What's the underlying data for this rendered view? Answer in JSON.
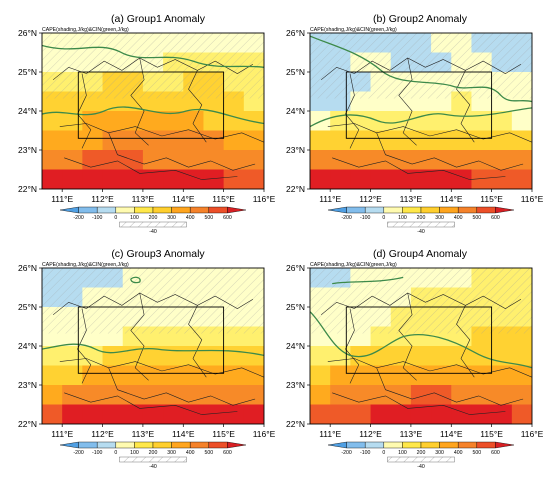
{
  "chart_data": [
    {
      "type": "heatmap",
      "title": "(a) Group1  Anomaly",
      "subtitle": "CAPE(shading,J/kg)&CIN(green,J/kg)",
      "x_ticks": [
        "111°E",
        "112°E",
        "113°E",
        "114°E",
        "115°E",
        "116°E"
      ],
      "y_ticks": [
        "26°N",
        "25°N",
        "24°N",
        "23°N",
        "22°N"
      ],
      "xlim": [
        110.5,
        116
      ],
      "ylim": [
        22,
        26
      ],
      "box": {
        "lon": [
          111.4,
          115
        ],
        "lat": [
          23.3,
          25
        ]
      },
      "colorbar_levels": [
        "-200",
        "-100",
        "0",
        "100",
        "200",
        "300",
        "400",
        "500",
        "600"
      ],
      "cin_legend_label": "-40",
      "cape_field": [
        [
          0,
          0,
          0,
          0,
          0,
          0,
          0,
          0,
          0,
          0,
          0
        ],
        [
          0,
          0,
          0,
          0,
          0,
          0,
          1,
          1,
          1,
          1,
          1
        ],
        [
          1,
          1,
          1,
          2,
          2,
          1,
          1,
          2,
          2,
          1,
          1
        ],
        [
          2,
          2,
          2,
          2,
          2,
          2,
          2,
          2,
          2,
          2,
          1
        ],
        [
          2,
          2,
          3,
          3,
          3,
          3,
          3,
          3,
          2,
          2,
          2
        ],
        [
          3,
          3,
          3,
          4,
          4,
          4,
          4,
          4,
          4,
          3,
          3
        ],
        [
          4,
          4,
          5,
          5,
          5,
          4,
          4,
          4,
          4,
          4,
          4
        ],
        [
          6,
          6,
          6,
          6,
          6,
          6,
          6,
          6,
          6,
          5,
          5
        ]
      ]
    },
    {
      "type": "heatmap",
      "title": "(b) Group2  Anomaly",
      "subtitle": "CAPE(shading,J/kg)&CIN(green,J/kg)",
      "x_ticks": [
        "111°E",
        "112°E",
        "113°E",
        "114°E",
        "115°E",
        "116°E"
      ],
      "y_ticks": [
        "26°N",
        "25°N",
        "24°N",
        "23°N",
        "22°N"
      ],
      "xlim": [
        110.5,
        116
      ],
      "ylim": [
        22,
        26
      ],
      "box": {
        "lon": [
          111.4,
          115
        ],
        "lat": [
          23.3,
          25
        ]
      },
      "colorbar_levels": [
        "-200",
        "-100",
        "0",
        "100",
        "200",
        "300",
        "400",
        "500",
        "600"
      ],
      "cin_legend_label": "-40",
      "cape_field": [
        [
          -1,
          -1,
          -1,
          -1,
          -1,
          -1,
          0,
          0,
          -1,
          -1,
          -1
        ],
        [
          -1,
          -1,
          0,
          0,
          -1,
          -1,
          -1,
          0,
          0,
          -1,
          -1
        ],
        [
          -1,
          -1,
          -1,
          0,
          0,
          0,
          0,
          0,
          0,
          0,
          0
        ],
        [
          -1,
          -1,
          0,
          0,
          0,
          0,
          0,
          1,
          0,
          0,
          0
        ],
        [
          0,
          1,
          1,
          1,
          1,
          1,
          1,
          1,
          1,
          1,
          0
        ],
        [
          2,
          2,
          2,
          2,
          2,
          2,
          2,
          2,
          2,
          2,
          2
        ],
        [
          4,
          4,
          4,
          4,
          4,
          4,
          4,
          4,
          4,
          4,
          4
        ],
        [
          6,
          6,
          6,
          6,
          6,
          6,
          6,
          6,
          5,
          5,
          5
        ]
      ]
    },
    {
      "type": "heatmap",
      "title": "(c) Group3  Anomaly",
      "subtitle": "CAPE(shading,J/kg)&CIN(green,J/kg)",
      "x_ticks": [
        "111°E",
        "112°E",
        "113°E",
        "114°E",
        "115°E",
        "116°E"
      ],
      "y_ticks": [
        "26°N",
        "25°N",
        "24°N",
        "23°N",
        "22°N"
      ],
      "xlim": [
        110.5,
        116
      ],
      "ylim": [
        22,
        26
      ],
      "box": {
        "lon": [
          111.4,
          115
        ],
        "lat": [
          23.3,
          25
        ]
      },
      "colorbar_levels": [
        "-200",
        "-100",
        "0",
        "100",
        "200",
        "300",
        "400",
        "500",
        "600"
      ],
      "cin_legend_label": "-40",
      "cape_field": [
        [
          -1,
          -1,
          -1,
          -1,
          0,
          0,
          0,
          0,
          0,
          0,
          0
        ],
        [
          -1,
          -1,
          0,
          0,
          0,
          0,
          0,
          0,
          0,
          0,
          0
        ],
        [
          0,
          0,
          0,
          0,
          0,
          0,
          0,
          0,
          0,
          0,
          0
        ],
        [
          0,
          0,
          0,
          0,
          1,
          1,
          1,
          1,
          1,
          1,
          1
        ],
        [
          1,
          1,
          1,
          2,
          2,
          2,
          2,
          2,
          2,
          2,
          2
        ],
        [
          2,
          2,
          3,
          3,
          3,
          3,
          3,
          3,
          3,
          3,
          3
        ],
        [
          3,
          4,
          4,
          4,
          4,
          4,
          4,
          4,
          4,
          4,
          4
        ],
        [
          5,
          6,
          6,
          6,
          6,
          6,
          6,
          6,
          6,
          6,
          6
        ]
      ]
    },
    {
      "type": "heatmap",
      "title": "(d) Group4  Anomaly",
      "subtitle": "CAPE(shading,J/kg)&CIN(green,J/kg)",
      "x_ticks": [
        "111°E",
        "112°E",
        "113°E",
        "114°E",
        "115°E",
        "116°E"
      ],
      "y_ticks": [
        "26°N",
        "25°N",
        "24°N",
        "23°N",
        "22°N"
      ],
      "xlim": [
        110.5,
        116
      ],
      "ylim": [
        22,
        26
      ],
      "box": {
        "lon": [
          111.4,
          115
        ],
        "lat": [
          23.3,
          25
        ]
      },
      "colorbar_levels": [
        "-200",
        "-100",
        "0",
        "100",
        "200",
        "300",
        "400",
        "500",
        "600"
      ],
      "cin_legend_label": "-40",
      "cape_field": [
        [
          -1,
          -1,
          0,
          0,
          0,
          0,
          0,
          0,
          1,
          1,
          1
        ],
        [
          0,
          0,
          0,
          0,
          0,
          1,
          1,
          1,
          1,
          1,
          1
        ],
        [
          0,
          0,
          0,
          0,
          1,
          1,
          1,
          1,
          1,
          1,
          1
        ],
        [
          0,
          0,
          0,
          1,
          1,
          1,
          1,
          1,
          2,
          2,
          2
        ],
        [
          1,
          1,
          2,
          2,
          2,
          2,
          2,
          2,
          2,
          2,
          2
        ],
        [
          2,
          3,
          3,
          3,
          3,
          3,
          3,
          3,
          3,
          3,
          3
        ],
        [
          3,
          4,
          4,
          4,
          4,
          5,
          5,
          4,
          4,
          4,
          4
        ],
        [
          5,
          5,
          5,
          6,
          6,
          6,
          6,
          6,
          6,
          6,
          5
        ]
      ]
    }
  ],
  "colors": {
    "cape_levels": {
      "-1": "#b6dcf0",
      "0": "#ffffc8",
      "1": "#fff06e",
      "2": "#ffd232",
      "3": "#ffaa1e",
      "4": "#f78a28",
      "5": "#ef5a28",
      "6": "#e01e23"
    },
    "colorbar": [
      "#4f9fe3",
      "#82bdec",
      "#b6dcf0",
      "#fffbb0",
      "#ffe84a",
      "#ffcf2e",
      "#ffa51e",
      "#f5822a",
      "#ec4f28",
      "#d81f23"
    ],
    "cin_contour": "#3d8a4a",
    "boundary": "#222222",
    "box": "#000000"
  }
}
